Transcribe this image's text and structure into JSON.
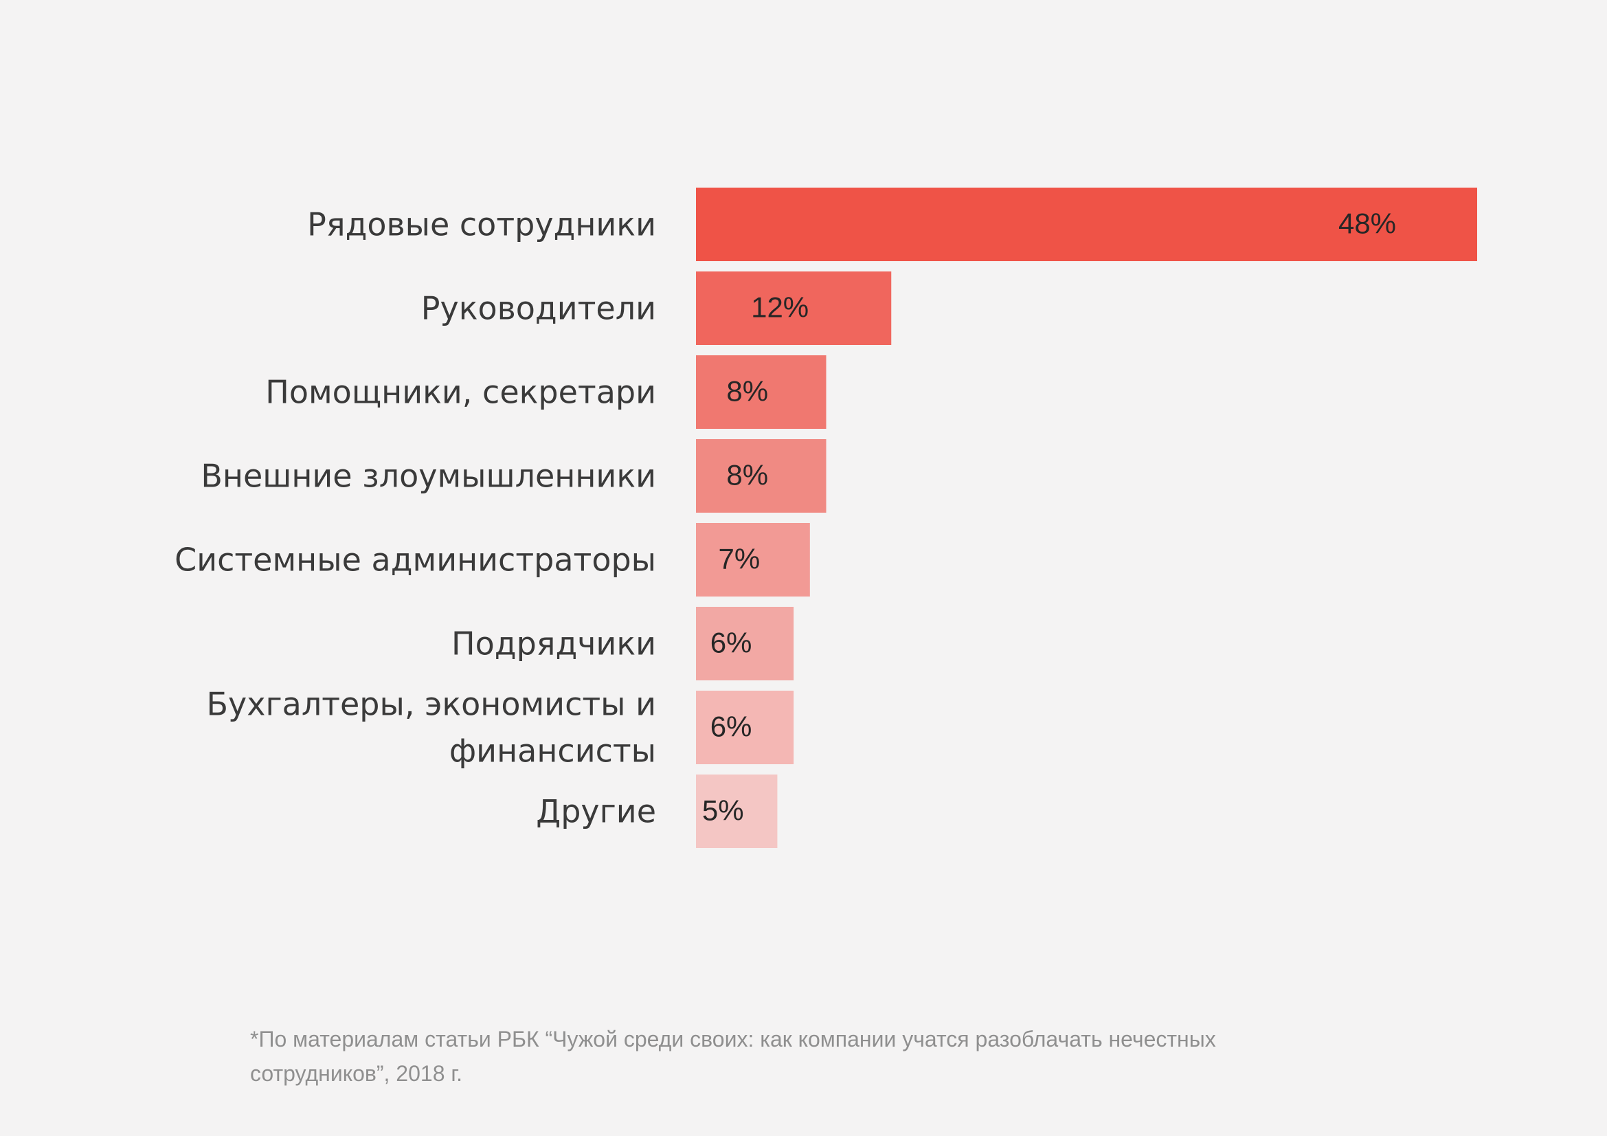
{
  "chart_data": {
    "type": "bar",
    "orientation": "horizontal",
    "categories": [
      [
        "Рядовые сотрудники"
      ],
      [
        "Руководители"
      ],
      [
        "Помощники, секретари"
      ],
      [
        "Внешние злоумышленники"
      ],
      [
        "Системные администраторы"
      ],
      [
        "Подрядчики"
      ],
      [
        "Бухгалтеры, экономисты и",
        "финансисты"
      ],
      [
        "Другие"
      ]
    ],
    "values": [
      48,
      12,
      8,
      8,
      7,
      6,
      6,
      5
    ],
    "value_labels": [
      "48%",
      "12%",
      "8%",
      "8%",
      "7%",
      "6%",
      "6%",
      "5%"
    ],
    "unit": "%",
    "colors": [
      "#ef5347",
      "#f0665d",
      "#f07870",
      "#f08a83",
      "#f29a95",
      "#f2a8a4",
      "#f4b7b4",
      "#f4c6c4"
    ],
    "grid": false,
    "legend": "none"
  },
  "footnote": {
    "line1": "*По материалам статьи РБК “Чужой среди своих: как компании учатся разоблачать нечестных",
    "line2": "сотрудников”, 2018 г."
  }
}
